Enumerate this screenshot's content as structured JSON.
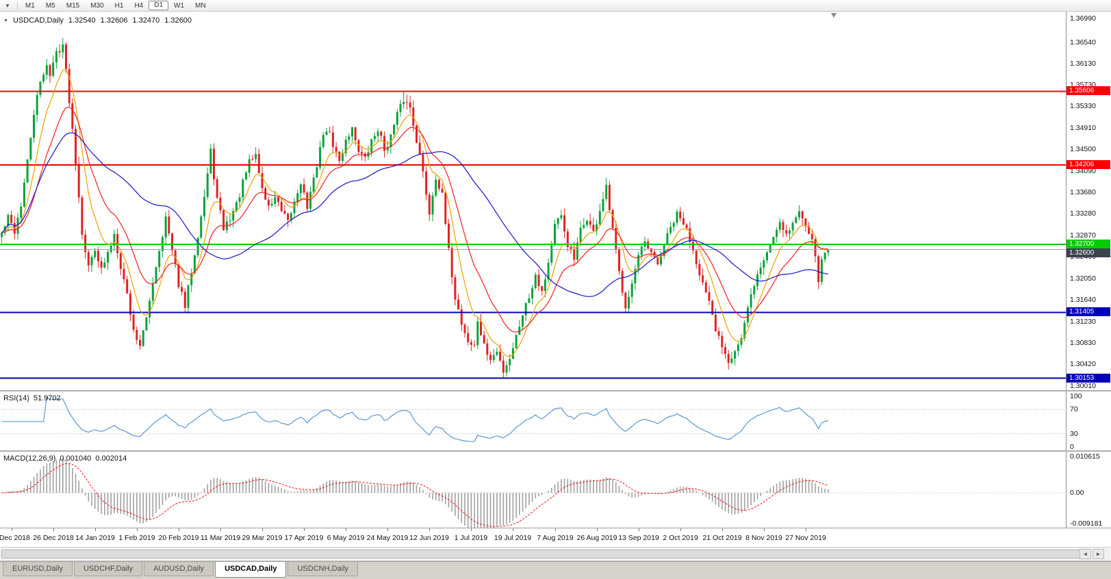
{
  "icons": {
    "toolbar_dropdown": "▼",
    "symbol_dropdown": "▼",
    "scroll_left": "◄",
    "scroll_right": "►"
  },
  "toolbar": {
    "timeframes": [
      "M1",
      "M5",
      "M15",
      "M30",
      "H1",
      "H4",
      "D1",
      "W1",
      "MN"
    ],
    "active_timeframe": "D1"
  },
  "chart_data": {
    "type": "candlestick",
    "symbol": "USDCAD",
    "period": "Daily",
    "title": {
      "symbol": "USDCAD,Daily",
      "open": "1.32540",
      "high": "1.32606",
      "low": "1.32470",
      "close": "1.32600"
    },
    "price_axis_ticks": [
      "1.36990",
      "1.36540",
      "1.36130",
      "1.35730",
      "1.35330",
      "1.34910",
      "1.34500",
      "1.34090",
      "1.33680",
      "1.33280",
      "1.32870",
      "1.32460",
      "1.32050",
      "1.31640",
      "1.31230",
      "1.30830",
      "1.30420",
      "1.30010"
    ],
    "price_range": {
      "min": 1.299,
      "max": 1.3712
    },
    "candle_count": 258,
    "seed": 42,
    "colors": {
      "up": "#0aa13a",
      "down": "#e02222"
    },
    "horizontal_lines": [
      {
        "label": "1.35606",
        "color": "#ff0000",
        "width": 2
      },
      {
        "label": "1.34206",
        "color": "#ff0000",
        "width": 2
      },
      {
        "label": "1.32700",
        "color": "#00cc00",
        "width": 2
      },
      {
        "label": "1.31405",
        "color": "#0000b8",
        "width": 2
      },
      {
        "label": "1.30153",
        "color": "#0000b8",
        "width": 2
      }
    ],
    "current_price": {
      "label": "1.32600",
      "line_color": "#9aa0a8",
      "tag_color": "#3c4250"
    },
    "moving_averages": [
      {
        "name": "fast-ma",
        "period": 8,
        "type": "ema",
        "color": "#f0a000"
      },
      {
        "name": "medium-ma",
        "period": 18,
        "type": "ema",
        "color": "#ff1a1a"
      },
      {
        "name": "slow-ma",
        "period": 45,
        "type": "sma",
        "color": "#1414cc"
      }
    ],
    "close_path_anchors": [
      [
        0,
        1.329
      ],
      [
        2,
        1.332
      ],
      [
        4,
        1.3295
      ],
      [
        6,
        1.3345
      ],
      [
        8,
        1.3425
      ],
      [
        10,
        1.352
      ],
      [
        12,
        1.3575
      ],
      [
        14,
        1.3615
      ],
      [
        15,
        1.359
      ],
      [
        17,
        1.3635
      ],
      [
        19,
        1.365
      ],
      [
        21,
        1.3545
      ],
      [
        23,
        1.343
      ],
      [
        25,
        1.3295
      ],
      [
        27,
        1.3225
      ],
      [
        29,
        1.3265
      ],
      [
        31,
        1.322
      ],
      [
        33,
        1.325
      ],
      [
        35,
        1.329
      ],
      [
        37,
        1.323
      ],
      [
        39,
        1.3175
      ],
      [
        41,
        1.3105
      ],
      [
        43,
        1.308
      ],
      [
        45,
        1.3125
      ],
      [
        47,
        1.32
      ],
      [
        49,
        1.326
      ],
      [
        51,
        1.332
      ],
      [
        53,
        1.3255
      ],
      [
        55,
        1.3195
      ],
      [
        57,
        1.315
      ],
      [
        59,
        1.322
      ],
      [
        61,
        1.329
      ],
      [
        63,
        1.336
      ],
      [
        65,
        1.3445
      ],
      [
        67,
        1.3355
      ],
      [
        69,
        1.33
      ],
      [
        71,
        1.332
      ],
      [
        73,
        1.3345
      ],
      [
        75,
        1.3385
      ],
      [
        77,
        1.3425
      ],
      [
        79,
        1.344
      ],
      [
        81,
        1.3375
      ],
      [
        83,
        1.334
      ],
      [
        85,
        1.336
      ],
      [
        87,
        1.333
      ],
      [
        89,
        1.331
      ],
      [
        91,
        1.335
      ],
      [
        93,
        1.339
      ],
      [
        95,
        1.334
      ],
      [
        97,
        1.339
      ],
      [
        99,
        1.3455
      ],
      [
        101,
        1.349
      ],
      [
        103,
        1.346
      ],
      [
        105,
        1.3425
      ],
      [
        107,
        1.347
      ],
      [
        109,
        1.349
      ],
      [
        111,
        1.345
      ],
      [
        113,
        1.343
      ],
      [
        115,
        1.3465
      ],
      [
        117,
        1.349
      ],
      [
        119,
        1.345
      ],
      [
        121,
        1.3475
      ],
      [
        123,
        1.3515
      ],
      [
        125,
        1.3545
      ],
      [
        127,
        1.353
      ],
      [
        129,
        1.347
      ],
      [
        131,
        1.3405
      ],
      [
        133,
        1.333
      ],
      [
        135,
        1.34
      ],
      [
        137,
        1.336
      ],
      [
        139,
        1.3255
      ],
      [
        141,
        1.317
      ],
      [
        143,
        1.312
      ],
      [
        145,
        1.3085
      ],
      [
        147,
        1.3075
      ],
      [
        148,
        1.3125
      ],
      [
        150,
        1.3075
      ],
      [
        152,
        1.305
      ],
      [
        154,
        1.3065
      ],
      [
        156,
        1.303
      ],
      [
        158,
        1.3055
      ],
      [
        160,
        1.3095
      ],
      [
        162,
        1.314
      ],
      [
        164,
        1.317
      ],
      [
        166,
        1.3215
      ],
      [
        168,
        1.318
      ],
      [
        170,
        1.3235
      ],
      [
        172,
        1.3305
      ],
      [
        174,
        1.332
      ],
      [
        176,
        1.327
      ],
      [
        178,
        1.324
      ],
      [
        180,
        1.3295
      ],
      [
        182,
        1.332
      ],
      [
        184,
        1.329
      ],
      [
        186,
        1.3335
      ],
      [
        188,
        1.3375
      ],
      [
        190,
        1.3295
      ],
      [
        192,
        1.3215
      ],
      [
        194,
        1.3155
      ],
      [
        196,
        1.3195
      ],
      [
        198,
        1.3245
      ],
      [
        200,
        1.327
      ],
      [
        202,
        1.325
      ],
      [
        204,
        1.323
      ],
      [
        206,
        1.327
      ],
      [
        208,
        1.33
      ],
      [
        210,
        1.3325
      ],
      [
        212,
        1.331
      ],
      [
        214,
        1.328
      ],
      [
        216,
        1.324
      ],
      [
        218,
        1.3195
      ],
      [
        220,
        1.3155
      ],
      [
        222,
        1.3105
      ],
      [
        224,
        1.308
      ],
      [
        226,
        1.305
      ],
      [
        228,
        1.307
      ],
      [
        230,
        1.309
      ],
      [
        232,
        1.3145
      ],
      [
        234,
        1.3195
      ],
      [
        236,
        1.3225
      ],
      [
        238,
        1.3255
      ],
      [
        240,
        1.3285
      ],
      [
        242,
        1.3315
      ],
      [
        244,
        1.329
      ],
      [
        246,
        1.331
      ],
      [
        248,
        1.333
      ],
      [
        250,
        1.331
      ],
      [
        252,
        1.3285
      ],
      [
        253,
        1.324
      ],
      [
        254,
        1.3205
      ],
      [
        255,
        1.3235
      ],
      [
        256,
        1.3254
      ],
      [
        257,
        1.326
      ]
    ],
    "forced_extremes": [
      {
        "index": 19,
        "high": 1.3662
      },
      {
        "index": 125,
        "high": 1.356
      },
      {
        "index": 156,
        "low": 1.3016
      },
      {
        "index": 227,
        "low": 1.3042
      }
    ],
    "x_labels": {
      "first_index": 3,
      "step": 13,
      "labels": [
        "7 Dec 2018",
        "26 Dec 2018",
        "14 Jan 2019",
        "1 Feb 2019",
        "20 Feb 2019",
        "11 Mar 2019",
        "29 Mar 2019",
        "17 Apr 2019",
        "6 May 2019",
        "24 May 2019",
        "12 Jun 2019",
        "1 Jul 2019",
        "19 Jul 2019",
        "7 Aug 2019",
        "26 Aug 2019",
        "13 Sep 2019",
        "2 Oct 2019",
        "21 Oct 2019",
        "8 Nov 2019",
        "27 Nov 2019"
      ]
    },
    "indicators": {
      "rsi": {
        "label": "RSI(14)",
        "value": "51.9702",
        "period": 14,
        "ticks": [
          "100",
          "70",
          "30",
          "0"
        ],
        "levels": [
          70,
          30
        ],
        "color": "#4a90d0"
      },
      "macd": {
        "label": "MACD(12,26,9)",
        "value_macd": "0.001040",
        "value_signal": "0.002014",
        "fast": 12,
        "slow": 26,
        "signal": 9,
        "ticks": {
          "top": "0.010615",
          "zero": "0.00",
          "bottom": "-0.009181"
        },
        "histogram_color": "#a0a0a0",
        "signal_color": "#ee1111"
      }
    }
  },
  "tabs": {
    "items": [
      "EURUSD,Daily",
      "USDCHF,Daily",
      "AUDUSD,Daily",
      "USDCAD,Daily",
      "USDCNH,Daily"
    ],
    "active_index": 3
  }
}
